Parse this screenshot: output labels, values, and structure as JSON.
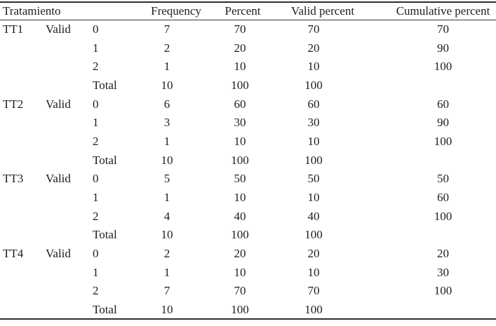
{
  "page": {
    "background": "#ffffff",
    "text_color": "#1e1e1e",
    "rule_color": "#2f2f2f"
  },
  "table": {
    "headers": {
      "group": "Tratamiento",
      "frequency": "Frequency",
      "percent": "Percent",
      "valid_percent": "Valid percent",
      "cumulative_percent": "Cumulative percent"
    },
    "valid_label": "Valid",
    "total_label": "Total",
    "sections": [
      {
        "group": "TT1",
        "rows": [
          [
            "0",
            "7",
            "70",
            "70",
            "70"
          ],
          [
            "1",
            "2",
            "20",
            "20",
            "90"
          ],
          [
            "2",
            "1",
            "10",
            "10",
            "100"
          ],
          [
            "Total",
            "10",
            "100",
            "100",
            ""
          ]
        ]
      },
      {
        "group": "TT2",
        "rows": [
          [
            "0",
            "6",
            "60",
            "60",
            "60"
          ],
          [
            "1",
            "3",
            "30",
            "30",
            "90"
          ],
          [
            "2",
            "1",
            "10",
            "10",
            "100"
          ],
          [
            "Total",
            "10",
            "100",
            "100",
            ""
          ]
        ]
      },
      {
        "group": "TT3",
        "rows": [
          [
            "0",
            "5",
            "50",
            "50",
            "50"
          ],
          [
            "1",
            "1",
            "10",
            "10",
            "60"
          ],
          [
            "2",
            "4",
            "40",
            "40",
            "100"
          ],
          [
            "Total",
            "10",
            "100",
            "100",
            ""
          ]
        ]
      },
      {
        "group": "TT4",
        "rows": [
          [
            "0",
            "2",
            "20",
            "20",
            "20"
          ],
          [
            "1",
            "1",
            "10",
            "10",
            "30"
          ],
          [
            "2",
            "7",
            "70",
            "70",
            "100"
          ],
          [
            "Total",
            "10",
            "100",
            "100",
            ""
          ]
        ]
      }
    ]
  }
}
